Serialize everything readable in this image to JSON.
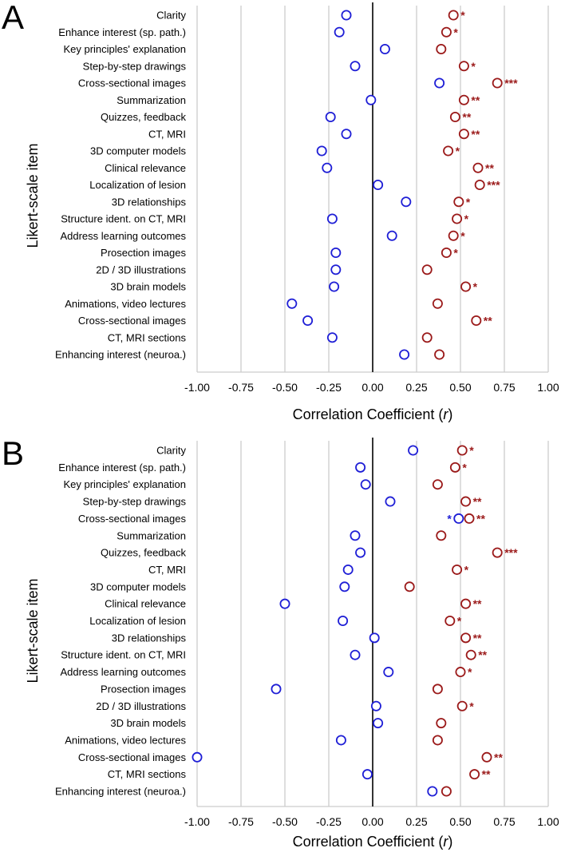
{
  "colors": {
    "blue": "#1f1fd6",
    "red": "#9b1a1a",
    "grid": "#cccccc",
    "axis": "#000000"
  },
  "chart_data": [
    {
      "type": "scatter",
      "panel": "A",
      "xlabel": "Correlation Coefficient (",
      "xlabel_var": "r",
      "xlabel_end": ")",
      "ylabel": "Likert-scale item",
      "xlim": [
        -1.0,
        1.0
      ],
      "xticks": [
        "-1.00",
        "-0.75",
        "-0.50",
        "-0.25",
        "0.00",
        "0.25",
        "0.50",
        "0.75",
        "1.00"
      ],
      "categories": [
        "Clarity",
        "Enhance interest (sp. path.)",
        "Key principles' explanation",
        "Step-by-step drawings",
        "Cross-sectional images",
        "Summarization",
        "Quizzes, feedback",
        "CT, MRI",
        "3D computer models",
        "Clinical relevance",
        "Localization of lesion",
        "3D relationships",
        "Structure ident. on CT, MRI",
        "Address learning outcomes",
        "Prosection images",
        "2D / 3D illustrations",
        "3D brain models",
        "Animations, video lectures",
        "Cross-sectional images",
        "CT, MRI sections",
        "Enhancing interest (neuroa.)"
      ],
      "series": [
        {
          "name": "blue",
          "values": [
            -0.15,
            -0.19,
            0.07,
            -0.1,
            0.38,
            -0.01,
            -0.24,
            -0.15,
            -0.29,
            -0.26,
            0.03,
            0.19,
            -0.23,
            0.11,
            -0.21,
            -0.21,
            -0.22,
            -0.46,
            -0.37,
            -0.23,
            0.18
          ],
          "stars": [
            "",
            "",
            "",
            "",
            "",
            "",
            "",
            "",
            "",
            "",
            "",
            "",
            "",
            "",
            "",
            "",
            "",
            "",
            "",
            "",
            ""
          ]
        },
        {
          "name": "red",
          "values": [
            0.46,
            0.42,
            0.39,
            0.52,
            0.71,
            0.52,
            0.47,
            0.52,
            0.43,
            0.6,
            0.61,
            0.49,
            0.48,
            0.46,
            0.42,
            0.31,
            0.53,
            0.37,
            0.59,
            0.31,
            0.38
          ],
          "stars": [
            "*",
            "*",
            "",
            "*",
            "***",
            "**",
            "**",
            "**",
            "*",
            "**",
            "***",
            "*",
            "*",
            "*",
            "*",
            "",
            "*",
            "",
            "**",
            "",
            ""
          ]
        }
      ]
    },
    {
      "type": "scatter",
      "panel": "B",
      "xlabel": "Correlation Coefficient (",
      "xlabel_var": "r",
      "xlabel_end": ")",
      "ylabel": "Likert-scale item",
      "xlim": [
        -1.0,
        1.0
      ],
      "xticks": [
        "-1.00",
        "-0.75",
        "-0.50",
        "-0.25",
        "0.00",
        "0.25",
        "0.50",
        "0.75",
        "1.00"
      ],
      "categories": [
        "Clarity",
        "Enhance interest (sp. path.)",
        "Key principles' explanation",
        "Step-by-step drawings",
        "Cross-sectional images",
        "Summarization",
        "Quizzes, feedback",
        "CT, MRI",
        "3D computer models",
        "Clinical relevance",
        "Localization of lesion",
        "3D relationships",
        "Structure ident. on CT, MRI",
        "Address learning outcomes",
        "Prosection images",
        "2D / 3D illustrations",
        "3D brain models",
        "Animations, video lectures",
        "Cross-sectional images",
        "CT, MRI sections",
        "Enhancing interest (neuroa.)"
      ],
      "series": [
        {
          "name": "blue",
          "values": [
            0.23,
            -0.07,
            -0.04,
            0.1,
            0.49,
            -0.1,
            -0.07,
            -0.14,
            -0.16,
            -0.5,
            -0.17,
            0.01,
            -0.1,
            0.09,
            -0.55,
            0.02,
            0.03,
            -0.18,
            -1.0,
            -0.03,
            0.34
          ],
          "stars": [
            "",
            "",
            "",
            "",
            "*",
            "",
            "",
            "",
            "",
            "",
            "",
            "",
            "",
            "",
            "",
            "",
            "",
            "",
            "",
            "",
            ""
          ]
        },
        {
          "name": "red",
          "values": [
            0.51,
            0.47,
            0.37,
            0.53,
            0.55,
            0.39,
            0.71,
            0.48,
            0.21,
            0.53,
            0.44,
            0.53,
            0.56,
            0.5,
            0.37,
            0.51,
            0.39,
            0.37,
            0.65,
            0.58,
            0.42
          ],
          "stars": [
            "*",
            "*",
            "",
            "**",
            "**",
            "",
            "***",
            "*",
            "",
            "**",
            "*",
            "**",
            "**",
            "*",
            "",
            "*",
            "",
            "",
            "**",
            "**",
            ""
          ]
        }
      ]
    }
  ]
}
